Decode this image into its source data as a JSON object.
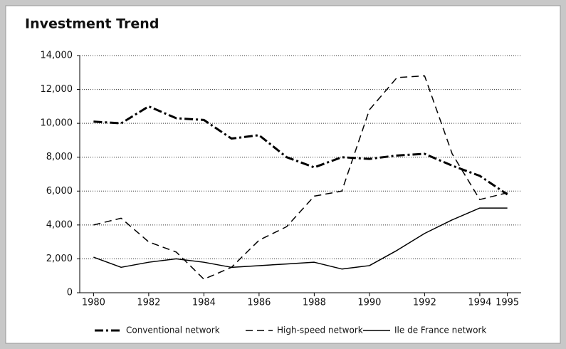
{
  "chart_data": {
    "type": "line",
    "title": "Investment Trend",
    "x": [
      1980,
      1981,
      1982,
      1983,
      1984,
      1985,
      1986,
      1987,
      1988,
      1989,
      1990,
      1991,
      1992,
      1993,
      1994,
      1995
    ],
    "series": [
      {
        "name": "Conventional network",
        "color": "#000000",
        "dash": "dashdot",
        "width": 3,
        "values": [
          10100,
          10000,
          11000,
          10300,
          10200,
          9100,
          9300,
          8000,
          7400,
          8000,
          7900,
          8100,
          8200,
          7500,
          6900,
          5800
        ]
      },
      {
        "name": "High-speed network",
        "color": "#000000",
        "dash": "dashed",
        "width": 1.5,
        "values": [
          4000,
          4400,
          3000,
          2400,
          800,
          1500,
          3100,
          3900,
          5700,
          6000,
          10800,
          12700,
          12800,
          8200,
          5500,
          5900
        ]
      },
      {
        "name": "Ile de France network",
        "color": "#000000",
        "dash": "solid",
        "width": 1.5,
        "values": [
          2100,
          1500,
          1800,
          2000,
          1800,
          1500,
          1600,
          1700,
          1800,
          1400,
          1600,
          2500,
          3500,
          4300,
          5000,
          5000
        ]
      }
    ],
    "xlim": [
      1979.5,
      1995.5
    ],
    "xticks": [
      1980,
      1982,
      1984,
      1986,
      1988,
      1990,
      1992,
      1994,
      1995
    ],
    "ylim": [
      0,
      14000
    ],
    "yticks": [
      0,
      {
        "value": 2000,
        "label": "2,000"
      },
      {
        "value": 4000,
        "label": "4,000"
      },
      {
        "value": 6000,
        "label": "6,000"
      },
      {
        "value": 8000,
        "label": "8,000"
      },
      {
        "value": 10000,
        "label": "10,000"
      },
      {
        "value": 12000,
        "label": "12,000"
      },
      {
        "value": 14000,
        "label": "14,000"
      }
    ],
    "grid": true,
    "legend": "bottom"
  }
}
